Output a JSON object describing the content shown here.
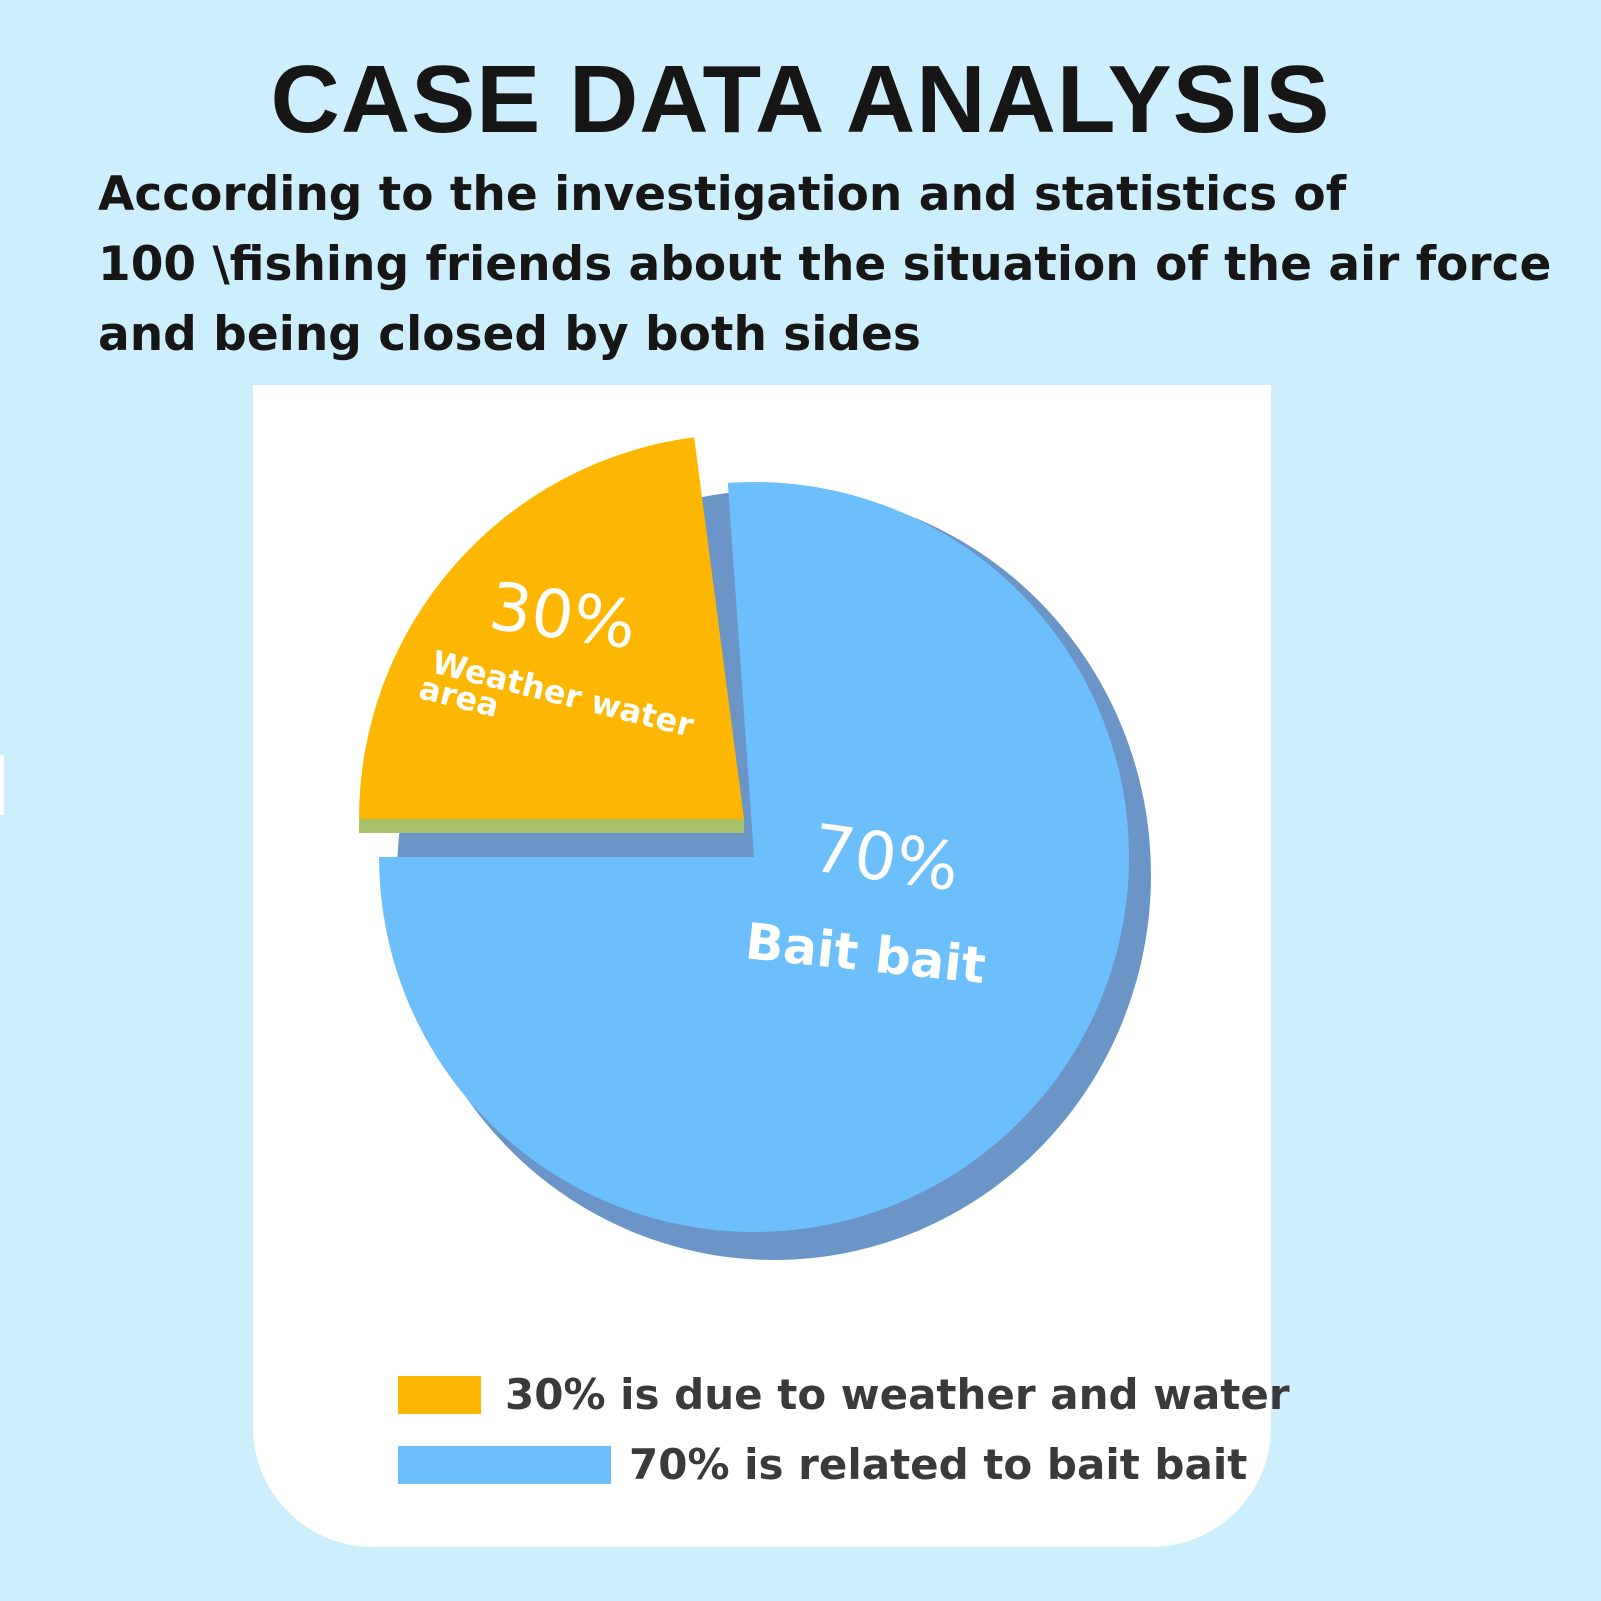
{
  "header": {
    "title": "CASE DATA ANALYSIS",
    "subtitle_lines": [
      "According to the investigation and statistics of",
      "100 \\fishing friends about the situation of the air force",
      "and being closed by both sides"
    ]
  },
  "chart_data": {
    "type": "pie",
    "slices": [
      {
        "label": "Weather water area",
        "value": 30,
        "value_label": "30%",
        "color": "#fdb601"
      },
      {
        "label": "Bait bait",
        "value": 70,
        "value_label": "70%",
        "color": "#6cbffb"
      }
    ],
    "legend": {
      "placement": "bottom",
      "entries": [
        {
          "text": "30% is due to weather and water",
          "color": "#fdb601"
        },
        {
          "text": "70% is related to bait bait",
          "color": "#6cbffb"
        }
      ]
    },
    "side_color": "#6a95c6",
    "exploded_side_color": "#a9c16a"
  }
}
